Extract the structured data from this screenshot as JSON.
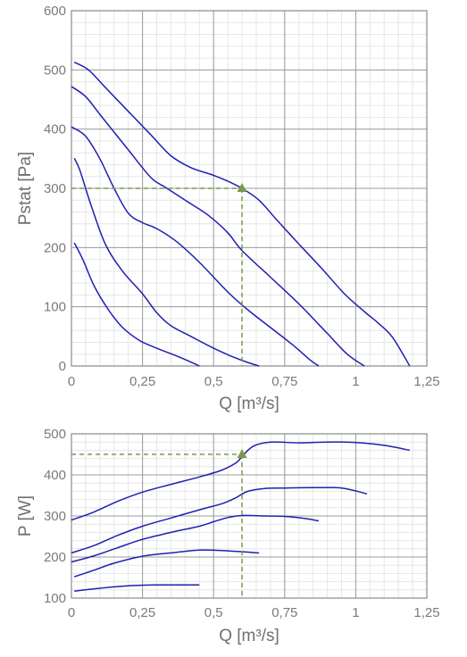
{
  "chart_data": [
    {
      "type": "line",
      "xlabel": "Q [m³/s]",
      "ylabel": "Pstat [Pa]",
      "xlim": [
        0,
        1.25
      ],
      "ylim": [
        0,
        600
      ],
      "xticks": [
        0,
        0.25,
        0.5,
        0.75,
        1,
        1.25
      ],
      "xtick_labels": [
        "0",
        "0,25",
        "0,5",
        "0,75",
        "1",
        "1,25"
      ],
      "yticks": [
        0,
        100,
        200,
        300,
        400,
        500,
        600
      ],
      "ytick_labels": [
        "0",
        "100",
        "200",
        "300",
        "400",
        "500",
        "600"
      ],
      "grid": true,
      "line_color": "#1f1fb4",
      "grid_color": "#e6e6e6",
      "major_grid_color": "#9b9b9b",
      "operating_point": {
        "x": 0.6,
        "y": 300,
        "color": "#7a9a4a"
      },
      "series": [
        {
          "points": [
            [
              0.01,
              513
            ],
            [
              0.06,
              500
            ],
            [
              0.12,
              470
            ],
            [
              0.2,
              430
            ],
            [
              0.28,
              390
            ],
            [
              0.35,
              355
            ],
            [
              0.42,
              335
            ],
            [
              0.5,
              322
            ],
            [
              0.56,
              310
            ],
            [
              0.6,
              300
            ],
            [
              0.66,
              280
            ],
            [
              0.72,
              248
            ],
            [
              0.8,
              206
            ],
            [
              0.88,
              165
            ],
            [
              0.96,
              122
            ],
            [
              1.03,
              92
            ],
            [
              1.08,
              72
            ],
            [
              1.13,
              48
            ],
            [
              1.19,
              0
            ]
          ]
        },
        {
          "points": [
            [
              0.0,
              472
            ],
            [
              0.05,
              455
            ],
            [
              0.1,
              425
            ],
            [
              0.2,
              365
            ],
            [
              0.28,
              318
            ],
            [
              0.33,
              302
            ],
            [
              0.4,
              280
            ],
            [
              0.48,
              255
            ],
            [
              0.55,
              225
            ],
            [
              0.6,
              195
            ],
            [
              0.7,
              150
            ],
            [
              0.8,
              105
            ],
            [
              0.9,
              55
            ],
            [
              0.97,
              20
            ],
            [
              1.03,
              0
            ]
          ]
        },
        {
          "points": [
            [
              0.0,
              404
            ],
            [
              0.05,
              388
            ],
            [
              0.1,
              350
            ],
            [
              0.15,
              300
            ],
            [
              0.2,
              258
            ],
            [
              0.25,
              242
            ],
            [
              0.3,
              232
            ],
            [
              0.37,
              210
            ],
            [
              0.45,
              175
            ],
            [
              0.55,
              125
            ],
            [
              0.62,
              95
            ],
            [
              0.7,
              65
            ],
            [
              0.78,
              35
            ],
            [
              0.84,
              10
            ],
            [
              0.87,
              0
            ]
          ]
        },
        {
          "points": [
            [
              0.01,
              351
            ],
            [
              0.03,
              330
            ],
            [
              0.07,
              270
            ],
            [
              0.12,
              205
            ],
            [
              0.18,
              160
            ],
            [
              0.25,
              122
            ],
            [
              0.3,
              90
            ],
            [
              0.35,
              68
            ],
            [
              0.42,
              50
            ],
            [
              0.5,
              30
            ],
            [
              0.57,
              15
            ],
            [
              0.62,
              6
            ],
            [
              0.66,
              0
            ]
          ]
        },
        {
          "points": [
            [
              0.01,
              208
            ],
            [
              0.04,
              180
            ],
            [
              0.08,
              135
            ],
            [
              0.13,
              95
            ],
            [
              0.18,
              65
            ],
            [
              0.24,
              43
            ],
            [
              0.3,
              30
            ],
            [
              0.38,
              15
            ],
            [
              0.45,
              0
            ]
          ]
        }
      ]
    },
    {
      "type": "line",
      "xlabel": "Q [m³/s]",
      "ylabel": "P [W]",
      "xlim": [
        0,
        1.25
      ],
      "ylim": [
        100,
        500
      ],
      "xticks": [
        0,
        0.25,
        0.5,
        0.75,
        1,
        1.25
      ],
      "xtick_labels": [
        "0",
        "0,25",
        "0,5",
        "0,75",
        "1",
        "1,25"
      ],
      "yticks": [
        100,
        200,
        300,
        400,
        500
      ],
      "ytick_labels": [
        "100",
        "200",
        "300",
        "400",
        "500"
      ],
      "grid": true,
      "line_color": "#1f1fb4",
      "grid_color": "#e6e6e6",
      "major_grid_color": "#9b9b9b",
      "operating_point": {
        "x": 0.6,
        "y": 450,
        "color": "#7a9a4a"
      },
      "series": [
        {
          "points": [
            [
              0.0,
              290
            ],
            [
              0.08,
              310
            ],
            [
              0.16,
              335
            ],
            [
              0.25,
              358
            ],
            [
              0.35,
              377
            ],
            [
              0.45,
              395
            ],
            [
              0.53,
              412
            ],
            [
              0.58,
              430
            ],
            [
              0.6,
              445
            ],
            [
              0.64,
              470
            ],
            [
              0.7,
              480
            ],
            [
              0.8,
              478
            ],
            [
              0.9,
              480
            ],
            [
              1.0,
              479
            ],
            [
              1.1,
              472
            ],
            [
              1.19,
              460
            ]
          ]
        },
        {
          "points": [
            [
              0.0,
              210
            ],
            [
              0.08,
              228
            ],
            [
              0.16,
              252
            ],
            [
              0.25,
              275
            ],
            [
              0.35,
              295
            ],
            [
              0.45,
              315
            ],
            [
              0.53,
              330
            ],
            [
              0.58,
              345
            ],
            [
              0.62,
              360
            ],
            [
              0.68,
              367
            ],
            [
              0.75,
              368
            ],
            [
              0.85,
              369
            ],
            [
              0.95,
              368
            ],
            [
              1.04,
              354
            ]
          ]
        },
        {
          "points": [
            [
              0.0,
              188
            ],
            [
              0.08,
              203
            ],
            [
              0.16,
              222
            ],
            [
              0.25,
              243
            ],
            [
              0.35,
              260
            ],
            [
              0.45,
              275
            ],
            [
              0.5,
              286
            ],
            [
              0.55,
              296
            ],
            [
              0.6,
              301
            ],
            [
              0.68,
              300
            ],
            [
              0.75,
              299
            ],
            [
              0.82,
              294
            ],
            [
              0.87,
              288
            ]
          ]
        },
        {
          "points": [
            [
              0.01,
              152
            ],
            [
              0.08,
              168
            ],
            [
              0.15,
              185
            ],
            [
              0.25,
              202
            ],
            [
              0.35,
              210
            ],
            [
              0.45,
              217
            ],
            [
              0.55,
              215
            ],
            [
              0.62,
              212
            ],
            [
              0.66,
              210
            ]
          ]
        },
        {
          "points": [
            [
              0.01,
              117
            ],
            [
              0.1,
              124
            ],
            [
              0.2,
              130
            ],
            [
              0.3,
              132
            ],
            [
              0.4,
              132
            ],
            [
              0.45,
              132
            ]
          ]
        }
      ]
    }
  ]
}
